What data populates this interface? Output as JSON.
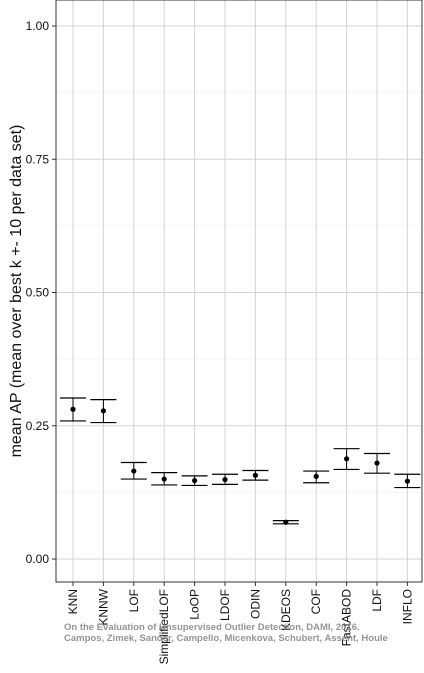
{
  "chart_data": {
    "type": "scatter",
    "ylabel": "mean AP (mean over best k +- 10 per data set)",
    "ylim": [
      0,
      1
    ],
    "yticks": [
      0,
      0.25,
      0.5,
      0.75,
      1
    ],
    "ytick_labels": [
      "0.00",
      "0.25",
      "0.50",
      "0.75",
      "1.00"
    ],
    "categories": [
      "KNN",
      "KNNW",
      "LOF",
      "SimplifiedLOF",
      "LoOP",
      "LDOF",
      "ODIN",
      "KDEOS",
      "COF",
      "FastABOD",
      "LDF",
      "INFLO"
    ],
    "points": [
      {
        "label": "KNN",
        "mean": 0.281,
        "low": 0.259,
        "high": 0.302
      },
      {
        "label": "KNNW",
        "mean": 0.278,
        "low": 0.256,
        "high": 0.299
      },
      {
        "label": "LOF",
        "mean": 0.165,
        "low": 0.15,
        "high": 0.181
      },
      {
        "label": "SimplifiedLOF",
        "mean": 0.15,
        "low": 0.139,
        "high": 0.162
      },
      {
        "label": "LoOP",
        "mean": 0.147,
        "low": 0.138,
        "high": 0.156
      },
      {
        "label": "LDOF",
        "mean": 0.149,
        "low": 0.14,
        "high": 0.159
      },
      {
        "label": "ODIN",
        "mean": 0.157,
        "low": 0.148,
        "high": 0.166
      },
      {
        "label": "KDEOS",
        "mean": 0.069,
        "low": 0.066,
        "high": 0.072
      },
      {
        "label": "COF",
        "mean": 0.155,
        "low": 0.143,
        "high": 0.165
      },
      {
        "label": "FastABOD",
        "mean": 0.188,
        "low": 0.168,
        "high": 0.207
      },
      {
        "label": "LDF",
        "mean": 0.18,
        "low": 0.161,
        "high": 0.198
      },
      {
        "label": "INFLO",
        "mean": 0.146,
        "low": 0.134,
        "high": 0.159
      }
    ],
    "grid": true,
    "legend": "none"
  },
  "watermark": {
    "line1": "On the Evaluation of Unsupervised Outlier Detection, DAMI, 2016.",
    "line2": "Campos, Zimek, Sander, Campello, Micenkova, Schubert, Assent, Houle"
  }
}
